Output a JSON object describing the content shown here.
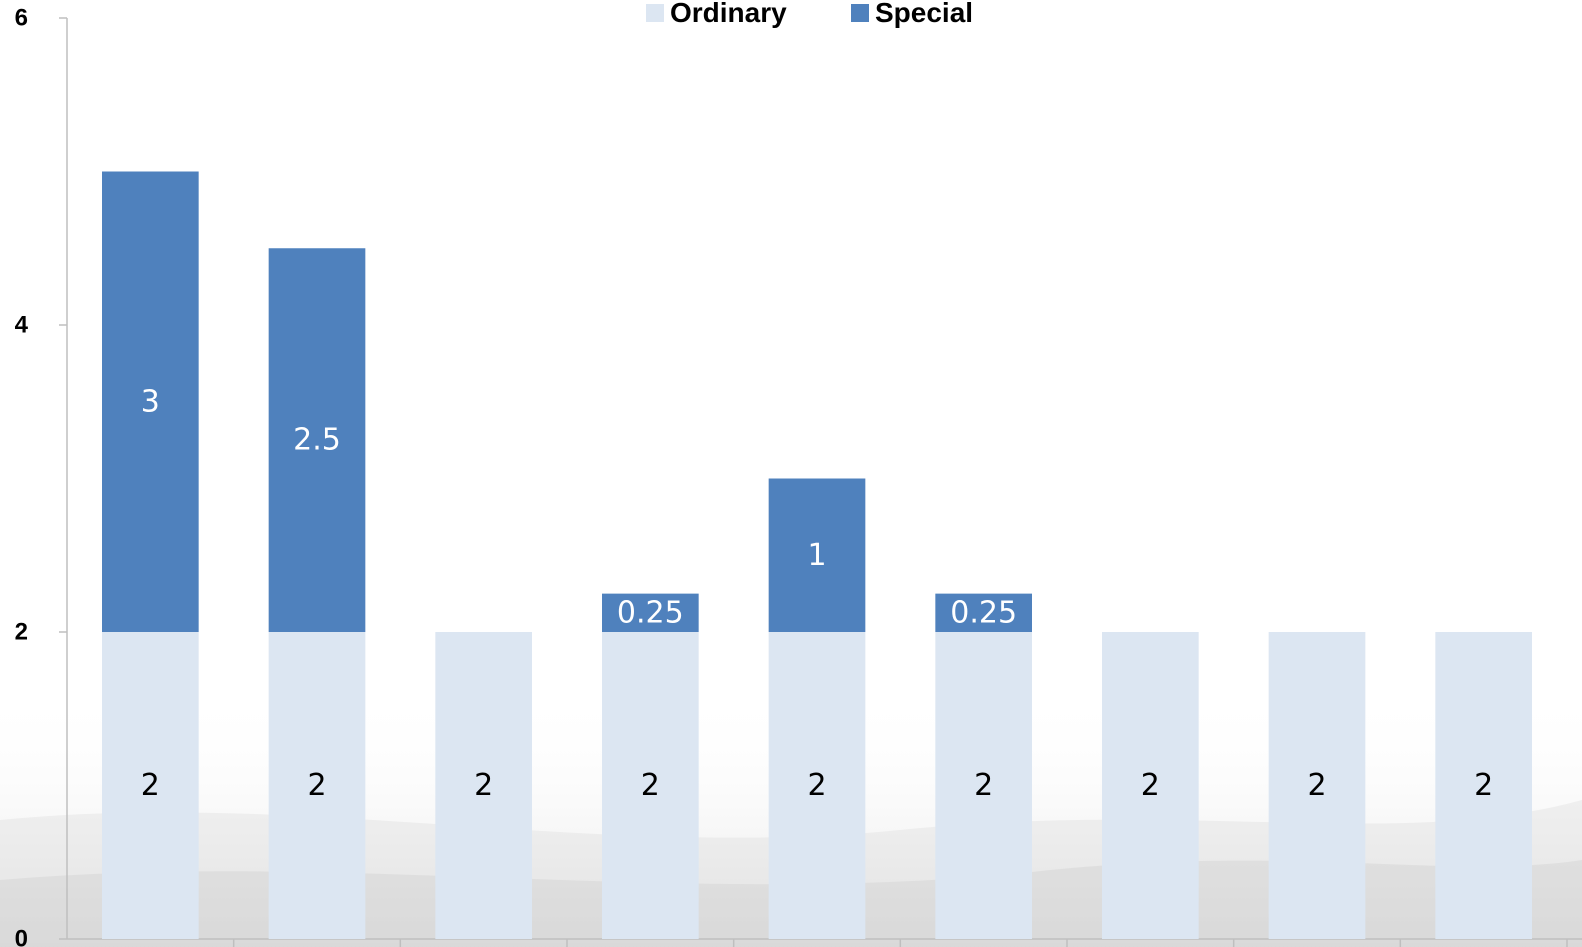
{
  "chart_data": {
    "type": "bar",
    "stacked": true,
    "categories": [
      "",
      "",
      "",
      "",
      "",
      "",
      "",
      "",
      ""
    ],
    "series": [
      {
        "name": "Ordinary",
        "color": "#dce6f2",
        "label_color": "#000000",
        "values": [
          2,
          2,
          2,
          2,
          2,
          2,
          2,
          2,
          2
        ]
      },
      {
        "name": "Special",
        "color": "#4f81bd",
        "label_color": "#ffffff",
        "values": [
          3,
          2.5,
          0,
          0.25,
          1,
          0.25,
          0,
          0,
          0
        ]
      }
    ],
    "title": "",
    "xlabel": "",
    "ylabel": "",
    "ylim": [
      0,
      6
    ],
    "yticks": [
      0,
      2,
      4,
      6
    ],
    "ytick_labels": [
      "0",
      "2",
      "4",
      "6"
    ],
    "grid": false,
    "legend_position": "top-center",
    "background": "faint grey brush-stroke texture near the bottom"
  }
}
